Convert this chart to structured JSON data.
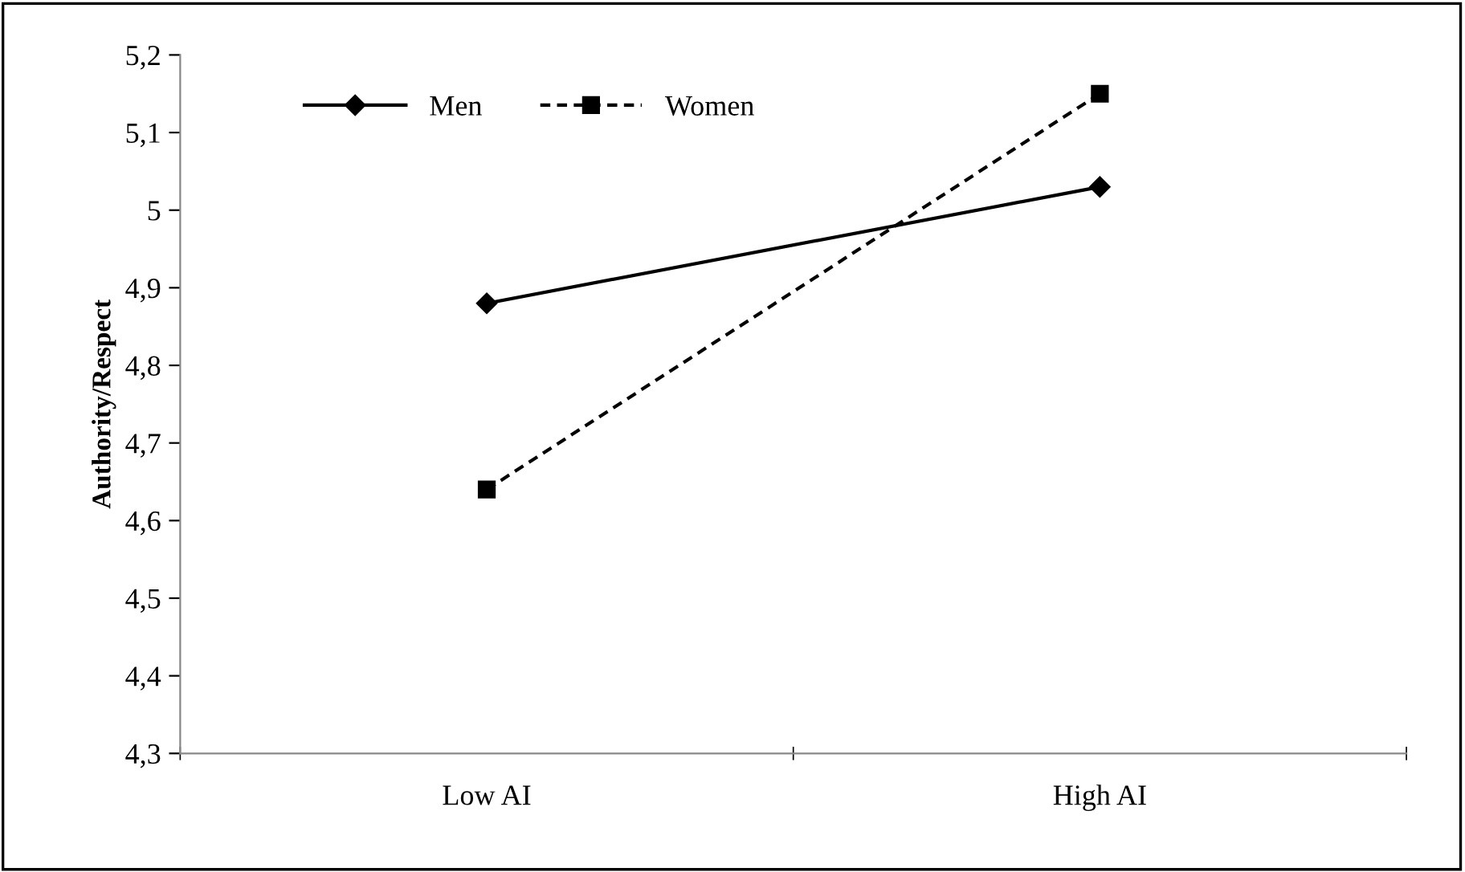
{
  "chart_data": {
    "type": "line",
    "ylabel": "Authority/Respect",
    "categories": [
      "Low AI",
      "High AI"
    ],
    "series": [
      {
        "name": "Men",
        "color": "#000000",
        "values": [
          4.88,
          5.03
        ],
        "marker": "diamond",
        "line_style": "solid"
      },
      {
        "name": "Women",
        "color": "#000000",
        "values": [
          4.64,
          5.15
        ],
        "marker": "square",
        "line_style": "dashed"
      }
    ],
    "ylim": [
      4.3,
      5.2
    ],
    "yticks": [
      {
        "value": 4.3,
        "label": "4,3"
      },
      {
        "value": 4.4,
        "label": "4,4"
      },
      {
        "value": 4.5,
        "label": "4,5"
      },
      {
        "value": 4.6,
        "label": "4,6"
      },
      {
        "value": 4.7,
        "label": "4,7"
      },
      {
        "value": 4.8,
        "label": "4,8"
      },
      {
        "value": 4.9,
        "label": "4,9"
      },
      {
        "value": 5,
        "label": "5"
      },
      {
        "value": 5.1,
        "label": "5,1"
      },
      {
        "value": 5.2,
        "label": "5,2"
      }
    ],
    "grid": false,
    "legend": "top left"
  }
}
